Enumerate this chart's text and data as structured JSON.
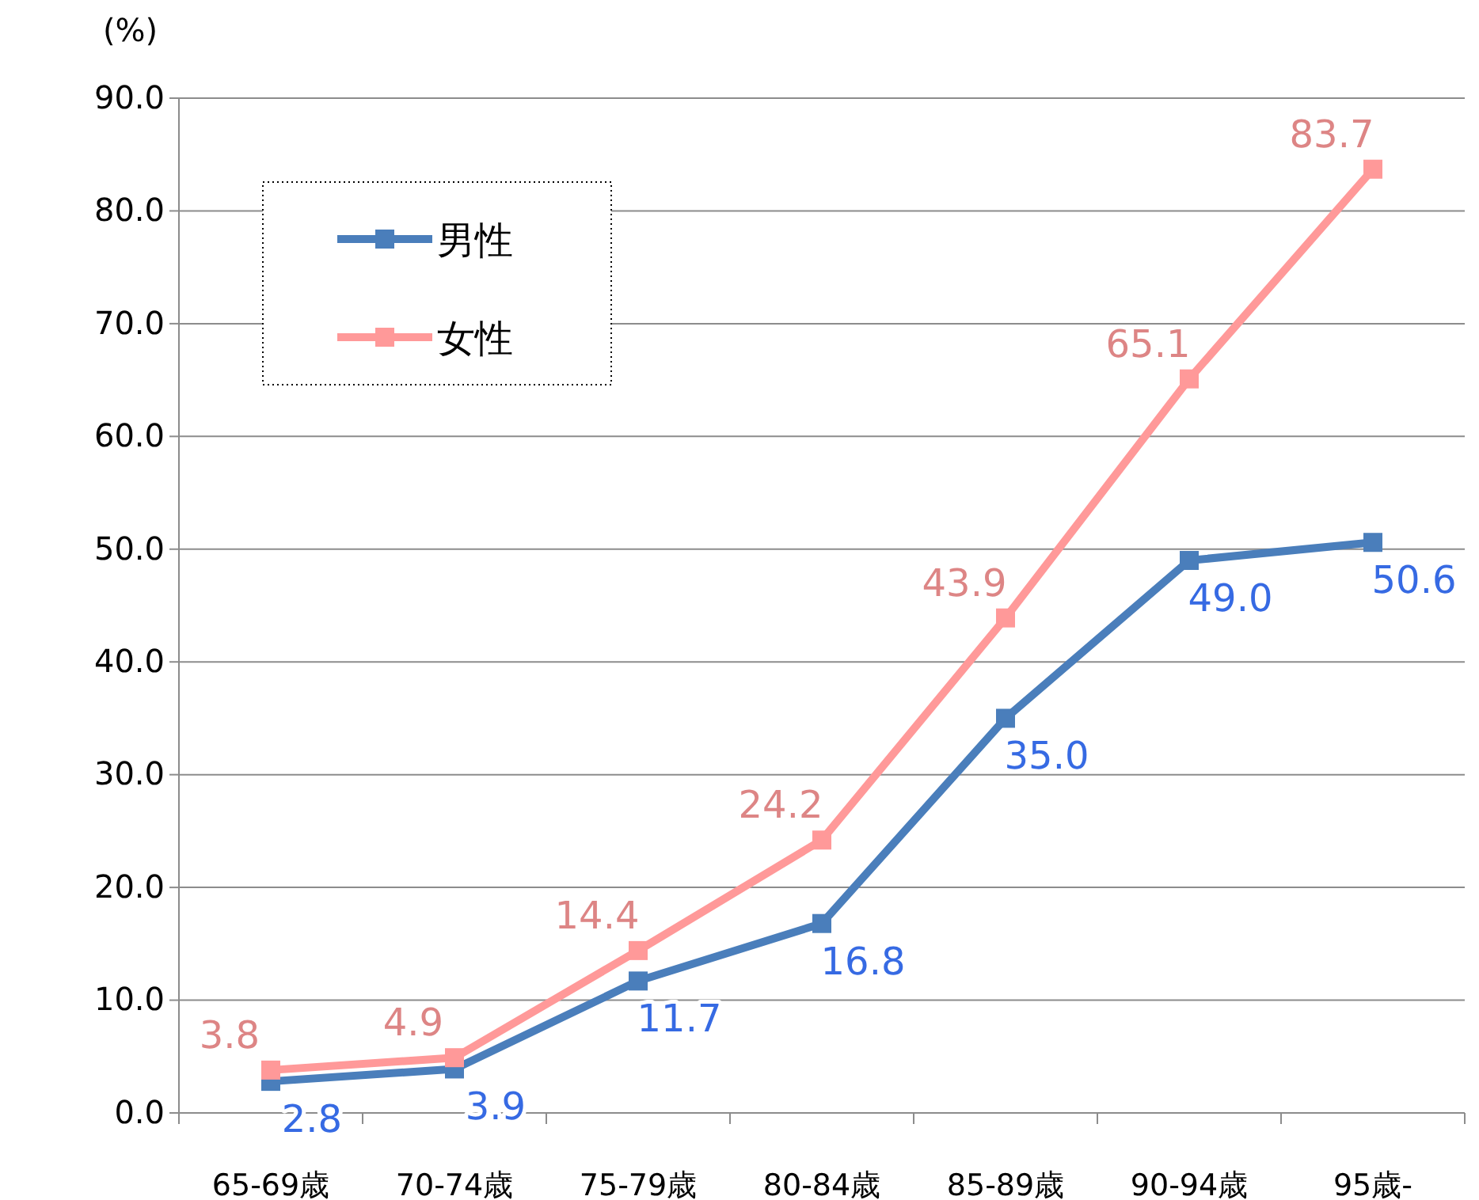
{
  "chart_data": {
    "type": "line",
    "ylabel": "(%)",
    "categories": [
      "65-69歳",
      "70-74歳",
      "75-79歳",
      "80-84歳",
      "85-89歳",
      "90-94歳",
      "95歳-"
    ],
    "series": [
      {
        "name": "男性",
        "color": "#4a7ebb",
        "values": [
          2.8,
          3.9,
          11.7,
          16.8,
          35.0,
          49.0,
          50.6
        ],
        "value_labels": [
          "2.8",
          "3.9",
          "11.7",
          "16.8",
          "35.0",
          "49.0",
          "50.6"
        ]
      },
      {
        "name": "女性",
        "color": "#ff9999",
        "values": [
          3.8,
          4.9,
          14.4,
          24.2,
          43.9,
          65.1,
          83.7
        ],
        "value_labels": [
          "3.8",
          "4.9",
          "14.4",
          "24.2",
          "43.9",
          "65.1",
          "83.7"
        ]
      }
    ],
    "ylim": [
      0,
      90
    ],
    "yticks": [
      {
        "value": 0,
        "label": "0.0"
      },
      {
        "value": 10,
        "label": "10.0"
      },
      {
        "value": 20,
        "label": "20.0"
      },
      {
        "value": 30,
        "label": "30.0"
      },
      {
        "value": 40,
        "label": "40.0"
      },
      {
        "value": 50,
        "label": "50.0"
      },
      {
        "value": 60,
        "label": "60.0"
      },
      {
        "value": 70,
        "label": "70.0"
      },
      {
        "value": 80,
        "label": "80.0"
      },
      {
        "value": 90,
        "label": "90.0"
      }
    ],
    "grid": "y",
    "legend": "top left",
    "marker": "square",
    "line_style": "solid"
  }
}
